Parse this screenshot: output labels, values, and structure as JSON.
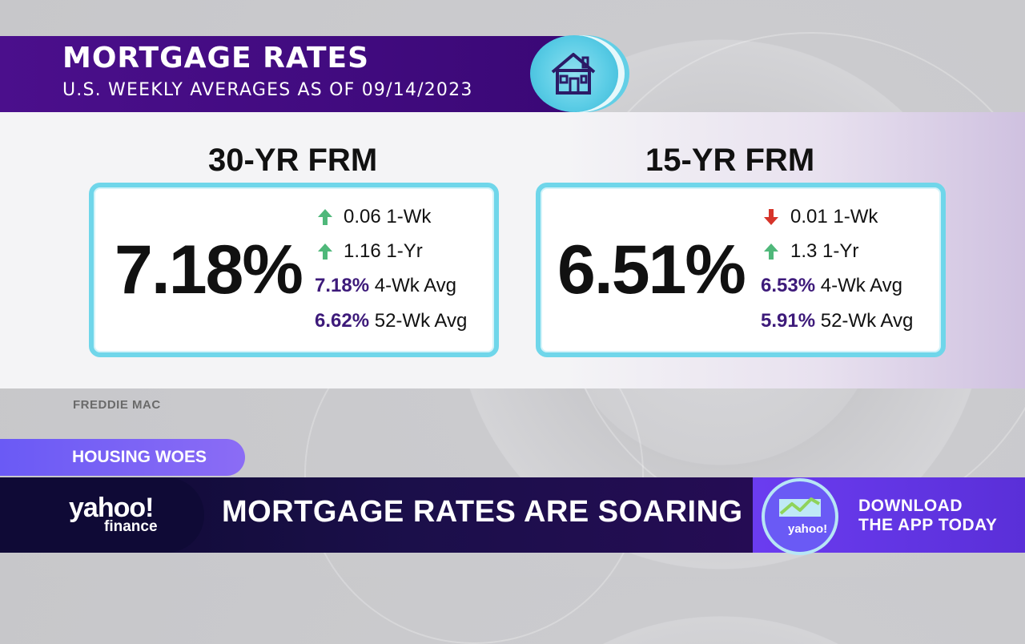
{
  "header": {
    "title": "MORTGAGE RATES",
    "subtitle": "U.S. WEEKLY AVERAGES AS OF 09/14/2023",
    "icon": "house-icon"
  },
  "cards": [
    {
      "heading": "30-YR FRM",
      "rate": "7.18%",
      "stats": [
        {
          "direction": "up",
          "value": "0.06",
          "label": "1-Wk"
        },
        {
          "direction": "up",
          "value": "1.16",
          "label": "1-Yr"
        },
        {
          "value": "7.18%",
          "label": "4-Wk Avg"
        },
        {
          "value": "6.62%",
          "label": "52-Wk Avg"
        }
      ]
    },
    {
      "heading": "15-YR FRM",
      "rate": "6.51%",
      "stats": [
        {
          "direction": "down",
          "value": "0.01",
          "label": "1-Wk"
        },
        {
          "direction": "up",
          "value": "1.3",
          "label": "1-Yr"
        },
        {
          "value": "6.53%",
          "label": "4-Wk Avg"
        },
        {
          "value": "5.91%",
          "label": "52-Wk Avg"
        }
      ]
    }
  ],
  "source": "FREDDIE MAC",
  "tag": "HOUSING WOES",
  "lower_third": {
    "logo_main": "yahoo!",
    "logo_sub": "finance",
    "headline": "MORTGAGE RATES ARE SOARING"
  },
  "promo": {
    "badge_text": "yahoo!",
    "line1": "DOWNLOAD",
    "line2": "THE APP TODAY"
  },
  "colors": {
    "header_purple": "#4b0f8c",
    "card_border": "#6fd6ea",
    "up_arrow": "#4fb87a",
    "down_arrow": "#d6342a",
    "stat_purple": "#3d1a7a"
  }
}
